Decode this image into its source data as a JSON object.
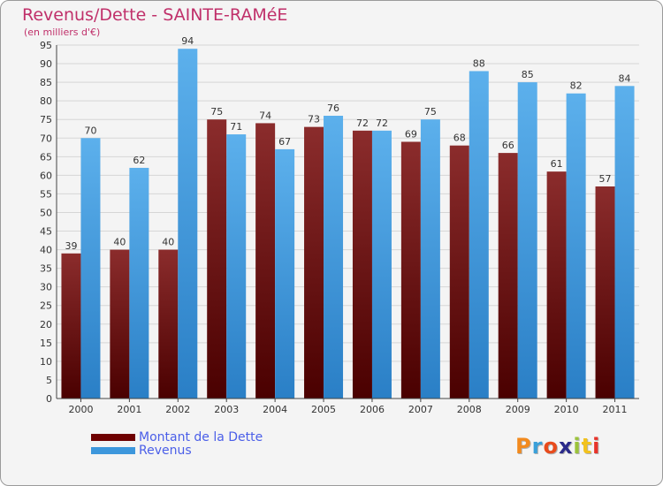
{
  "chart_data": {
    "type": "bar",
    "title": "Revenus/Dette - SAINTE-RAMéE",
    "subtitle": "(en milliers d'€)",
    "categories": [
      "2000",
      "2001",
      "2002",
      "2003",
      "2004",
      "2005",
      "2006",
      "2007",
      "2008",
      "2009",
      "2010",
      "2011"
    ],
    "series": [
      {
        "name": "Montant de la Dette",
        "color": "#6e1c1c",
        "values": [
          39,
          40,
          40,
          75,
          74,
          73,
          72,
          69,
          68,
          66,
          61,
          57
        ]
      },
      {
        "name": "Revenus",
        "color": "#3d97dc",
        "values": [
          70,
          62,
          94,
          71,
          67,
          76,
          72,
          75,
          88,
          85,
          82,
          84
        ]
      }
    ],
    "ylim": [
      0,
      95
    ],
    "yticks": [
      0,
      5,
      10,
      15,
      20,
      25,
      30,
      35,
      40,
      45,
      50,
      55,
      60,
      65,
      70,
      75,
      80,
      85,
      90,
      95
    ],
    "grid": true,
    "xlabel": "",
    "ylabel": "",
    "legend_position": "bottom-left"
  },
  "logo": {
    "text": "Proxiti",
    "colors": [
      "#f28a1e",
      "#3aa0d9",
      "#e84b1c",
      "#2a2a8a",
      "#9bc33a",
      "#f2c21e",
      "#e8332a"
    ]
  }
}
